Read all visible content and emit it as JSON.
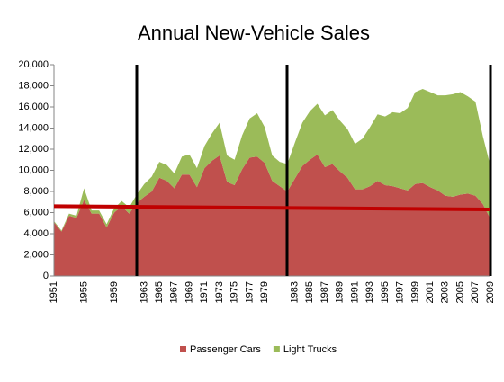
{
  "chart_data": {
    "type": "stacked_area",
    "title": "Annual New-Vehicle Sales",
    "categories": [
      "1951",
      null,
      null,
      null,
      "1955",
      null,
      null,
      null,
      "1959",
      null,
      null,
      null,
      "1963",
      null,
      "1965",
      null,
      "1967",
      null,
      "1969",
      null,
      "1971",
      null,
      "1973",
      null,
      "1975",
      null,
      "1977",
      null,
      "1979",
      null,
      null,
      null,
      "1983",
      null,
      "1985",
      null,
      "1987",
      null,
      "1989",
      null,
      "1991",
      null,
      "1993",
      null,
      "1995",
      null,
      "1997",
      null,
      "1999",
      null,
      "2001",
      null,
      "2003",
      null,
      "2005",
      null,
      "2007",
      null,
      "2009"
    ],
    "series": [
      {
        "name": "Passenger Cars",
        "color": "#c0504d",
        "values": [
          5100,
          4200,
          5700,
          5500,
          7200,
          5900,
          5900,
          4600,
          6000,
          6600,
          5900,
          6900,
          7500,
          8000,
          9300,
          9000,
          8300,
          9600,
          9600,
          8400,
          10200,
          10900,
          11400,
          8900,
          8600,
          10100,
          11200,
          11300,
          10700,
          9000,
          8500,
          8000,
          9200,
          10400,
          11000,
          11500,
          10300,
          10600,
          9900,
          9300,
          8200,
          8200,
          8500,
          9000,
          8600,
          8500,
          8300,
          8100,
          8700,
          8800,
          8400,
          8100,
          7600,
          7500,
          7700,
          7800,
          7600,
          6800,
          5400
        ]
      },
      {
        "name": "Light Trucks",
        "color": "#9bbb59",
        "values": [
          100,
          100,
          200,
          200,
          1100,
          300,
          300,
          300,
          400,
          500,
          600,
          800,
          1200,
          1400,
          1500,
          1500,
          1400,
          1700,
          1900,
          1800,
          2100,
          2600,
          3100,
          2500,
          2400,
          3200,
          3700,
          4100,
          3400,
          2400,
          2300,
          2600,
          3400,
          4100,
          4600,
          4800,
          4900,
          5100,
          4800,
          4600,
          4300,
          4800,
          5600,
          6300,
          6500,
          7000,
          7100,
          7800,
          8700,
          8900,
          9000,
          9000,
          9500,
          9700,
          9700,
          9200,
          8900,
          6400,
          5000
        ]
      }
    ],
    "ylim": [
      0,
      20000
    ],
    "yticks": [
      0,
      {
        "value": 2000,
        "label": "2,000"
      },
      {
        "value": 4000,
        "label": "4,000"
      },
      {
        "value": 6000,
        "label": "6,000"
      },
      {
        "value": 8000,
        "label": "8,000"
      },
      {
        "value": 10000,
        "label": "10,000"
      },
      {
        "value": 12000,
        "label": "12,000"
      },
      {
        "value": 14000,
        "label": "14,000"
      },
      {
        "value": 16000,
        "label": "16,000"
      },
      {
        "value": 18000,
        "label": "18,000"
      },
      {
        "value": 20000,
        "label": "20,000"
      }
    ],
    "grid": false,
    "legend": "bottom"
  }
}
